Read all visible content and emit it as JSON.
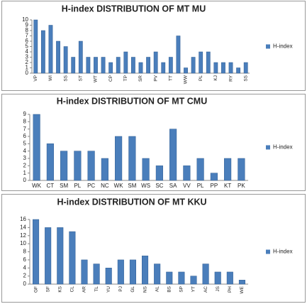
{
  "chart_data": [
    {
      "type": "bar",
      "title": "H-index DISTRIBUTION OF MT MU",
      "categories": [
        "VP",
        null,
        "WI",
        null,
        "SS",
        null,
        "ST",
        null,
        "WT",
        null,
        "CP",
        null,
        "TP",
        null,
        "SR",
        null,
        "PV",
        null,
        "TT",
        null,
        "WW",
        null,
        "PL",
        null,
        "KJ",
        null,
        "RY",
        null,
        "SS"
      ],
      "series": [
        {
          "name": "H-index",
          "color": "#4a7ebb",
          "values": [
            10,
            8,
            9,
            6,
            5,
            3,
            6,
            3,
            3,
            3,
            2,
            3,
            4,
            3,
            2,
            3,
            4,
            2,
            3,
            7,
            1,
            3,
            4,
            4,
            2,
            2,
            2,
            1,
            2
          ]
        }
      ],
      "ylim": [
        0,
        10
      ],
      "yticks": [
        0,
        1,
        2,
        3,
        4,
        5,
        6,
        7,
        8,
        9,
        10
      ],
      "legend": "right"
    },
    {
      "type": "bar",
      "title": "H-index DISTRIBUTION OF MT CMU",
      "categories": [
        "WK",
        "CT",
        "SM",
        "PL",
        "PC",
        "NC",
        "WK",
        "SM",
        "WS",
        "SC",
        "SA",
        "VV",
        "PL",
        "PP",
        "KT",
        "PK"
      ],
      "series": [
        {
          "name": "H-index",
          "color": "#4a7ebb",
          "values": [
            9,
            5,
            4,
            4,
            4,
            3,
            6,
            6,
            3,
            2,
            7,
            2,
            3,
            1,
            3,
            3
          ]
        }
      ],
      "ylim": [
        0,
        9
      ],
      "yticks": [
        0,
        1,
        2,
        3,
        4,
        5,
        6,
        7,
        8,
        9
      ],
      "legend": "right"
    },
    {
      "type": "bar",
      "title": "H-index DISTRIBUTION OF MT KKU",
      "categories": [
        "GF",
        "SF",
        "KS",
        "CL",
        "AR",
        "TL",
        "YU",
        "PJ",
        "GL",
        "NS",
        "AL",
        "BS",
        "SP",
        "YT",
        "AC",
        "JS",
        "PH",
        "WE"
      ],
      "series": [
        {
          "name": "H-index",
          "color": "#4a7ebb",
          "values": [
            16,
            14,
            14,
            13,
            6,
            5,
            4,
            6,
            6,
            7,
            5,
            3,
            3,
            2,
            5,
            3,
            3,
            1
          ]
        }
      ],
      "ylim": [
        0,
        16
      ],
      "yticks": [
        0,
        2,
        4,
        6,
        8,
        10,
        12,
        14,
        16
      ],
      "legend": "right"
    }
  ]
}
